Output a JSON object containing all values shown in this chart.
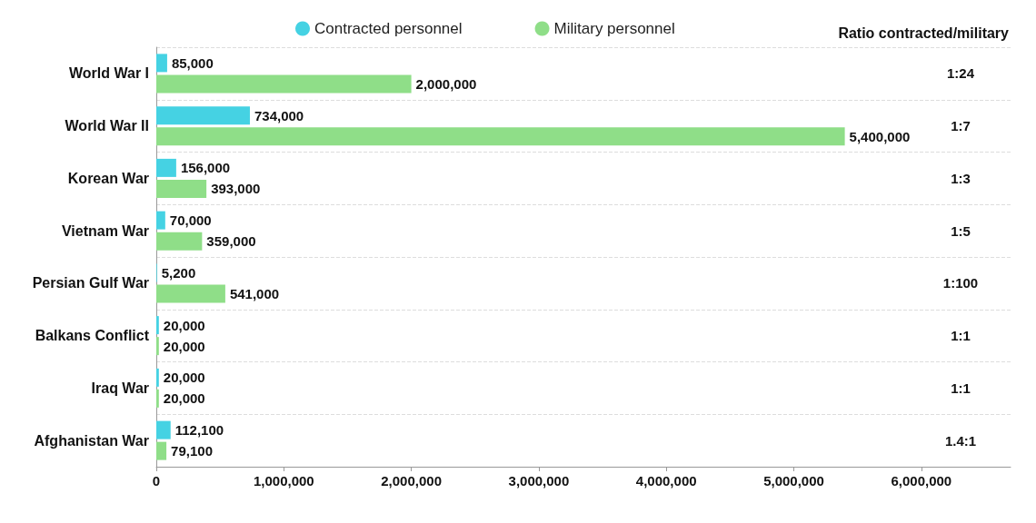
{
  "chart_data": {
    "type": "bar",
    "orientation": "horizontal",
    "categories": [
      "World War I",
      "World War II",
      "Korean War",
      "Vietnam War",
      "Persian Gulf War",
      "Balkans Conflict",
      "Iraq War",
      "Afghanistan War"
    ],
    "series": [
      {
        "name": "Contracted personnel",
        "color": "#45d2e3",
        "values": [
          85000,
          734000,
          156000,
          70000,
          5200,
          20000,
          20000,
          112100
        ],
        "value_labels": [
          "85,000",
          "734,000",
          "156,000",
          "70,000",
          "5,200",
          "20,000",
          "20,000",
          "112,100"
        ]
      },
      {
        "name": "Military personnel",
        "color": "#8fde88",
        "values": [
          2000000,
          5400000,
          393000,
          359000,
          541000,
          20000,
          20000,
          79100
        ],
        "value_labels": [
          "2,000,000",
          "5,400,000",
          "393,000",
          "359,000",
          "541,000",
          "20,000",
          "20,000",
          "79,100"
        ]
      }
    ],
    "xlim": [
      0,
      6700000
    ],
    "xticks": [
      {
        "value": 0,
        "label": "0"
      },
      {
        "value": 1000000,
        "label": "1,000,000"
      },
      {
        "value": 2000000,
        "label": "2,000,000"
      },
      {
        "value": 3000000,
        "label": "3,000,000"
      },
      {
        "value": 4000000,
        "label": "4,000,000"
      },
      {
        "value": 5000000,
        "label": "5,000,000"
      },
      {
        "value": 6000000,
        "label": "6,000,000"
      }
    ],
    "grid": "y",
    "legend": "top",
    "annotations": [
      "Ratio contracted/military",
      "1:24",
      "1:7",
      "1:3",
      "1:5",
      "1:100",
      "1:1",
      "1:1",
      "1.4:1"
    ]
  }
}
